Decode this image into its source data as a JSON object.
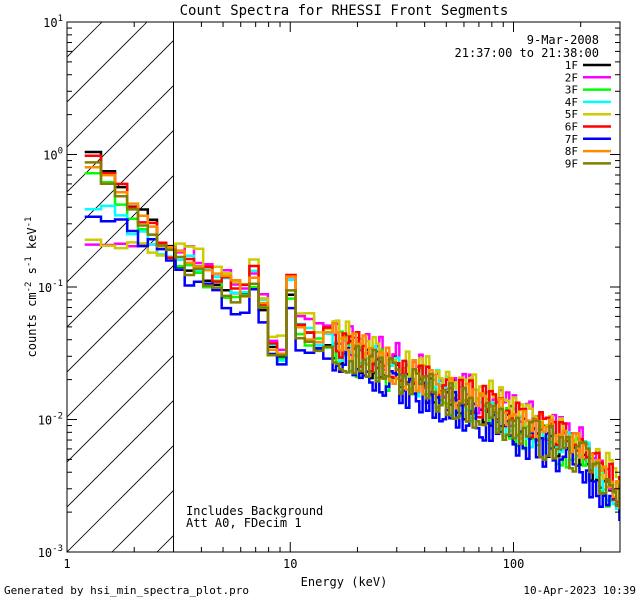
{
  "chart_data": {
    "type": "line",
    "title": "Count Spectra for RHESSI Front Segments",
    "xlabel": "Energy (keV)",
    "ylabel": "counts cm",
    "ylabel_sup1": "-2",
    "ylabel_mid": " s",
    "ylabel_sup2": "-1",
    "ylabel_end": " keV",
    "ylabel_sup3": "-1",
    "x_scale": "log",
    "y_scale": "log",
    "xlim": [
      1,
      300
    ],
    "ylim": [
      0.001,
      10
    ],
    "x_ticks": [
      {
        "value": 1,
        "label": "1"
      },
      {
        "value": 10,
        "label": "10"
      },
      {
        "value": 100,
        "label": "100"
      }
    ],
    "y_ticks": [
      {
        "value": 10,
        "label": "10",
        "sup": "1"
      },
      {
        "value": 1,
        "label": "10",
        "sup": "0"
      },
      {
        "value": 0.1,
        "label": "10",
        "sup": "-1"
      },
      {
        "value": 0.01,
        "label": "10",
        "sup": "-2"
      },
      {
        "value": 0.001,
        "label": "10",
        "sup": "-3"
      }
    ],
    "date": "9-Mar-2008",
    "time_range": "21:37:00 to 21:38:00",
    "attenuator_cut_energy": 3,
    "annotations": [
      "Includes Background",
      "Att A0, FDecim 1"
    ],
    "series": [
      {
        "name": "1F",
        "color": "#000000",
        "seed": 11,
        "level": 1.0,
        "low_start": 1.35,
        "noise": 0.3
      },
      {
        "name": "2F",
        "color": "#ff00ff",
        "seed": 23,
        "level": 1.25,
        "low_start": 0.23,
        "noise": 0.3
      },
      {
        "name": "3F",
        "color": "#00ff00",
        "seed": 37,
        "level": 0.95,
        "low_start": 0.9,
        "noise": 0.32
      },
      {
        "name": "4F",
        "color": "#00ffff",
        "seed": 41,
        "level": 1.05,
        "low_start": 0.45,
        "noise": 0.3
      },
      {
        "name": "5F",
        "color": "#cccc00",
        "seed": 53,
        "level": 1.35,
        "low_start": 0.25,
        "noise": 0.28
      },
      {
        "name": "6F",
        "color": "#ff0000",
        "seed": 67,
        "level": 1.15,
        "low_start": 1.25,
        "noise": 0.3
      },
      {
        "name": "7F",
        "color": "#0000ff",
        "seed": 79,
        "level": 0.8,
        "low_start": 0.39,
        "noise": 0.32
      },
      {
        "name": "8F",
        "color": "#ff8c00",
        "seed": 83,
        "level": 1.1,
        "low_start": 1.0,
        "noise": 0.3
      },
      {
        "name": "9F",
        "color": "#808000",
        "seed": 97,
        "level": 0.95,
        "low_start": 1.1,
        "noise": 0.32
      }
    ]
  },
  "footer": {
    "generated_by": "Generated by hsi_min_spectra_plot.pro",
    "timestamp": "10-Apr-2023 10:39"
  }
}
